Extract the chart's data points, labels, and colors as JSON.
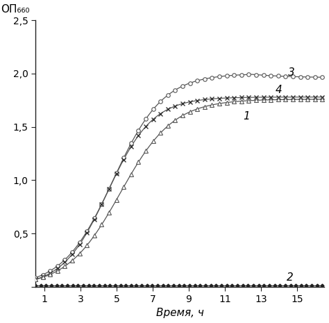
{
  "ylabel": "ОП₆₆₀",
  "xlabel": "Время, ч",
  "ylim": [
    0,
    2.5
  ],
  "xlim": [
    0.5,
    16.5
  ],
  "yticks": [
    0,
    0.5,
    1.0,
    1.5,
    2.0,
    2.5
  ],
  "xticks": [
    1,
    3,
    5,
    7,
    9,
    11,
    13,
    15
  ],
  "ytick_labels": [
    "",
    "0,5",
    "1,0",
    "1,5",
    "2,0",
    "2,5"
  ],
  "xtick_labels": [
    "1",
    "3",
    "5",
    "7",
    "9",
    "11",
    "13",
    "15"
  ],
  "curve1_label": "1",
  "curve2_label": "2",
  "curve3_label": "3",
  "curve4_label": "4",
  "background_color": "#ffffff",
  "line_color": "#555555",
  "curve2_color": "#222222",
  "label_fontsize": 11,
  "axis_fontsize": 10,
  "curve3_t0": 4.8,
  "curve3_k": 0.72,
  "curve3_ymax": 2.0,
  "curve3_plateau": 1.95,
  "curve4_t0": 4.5,
  "curve4_k": 0.8,
  "curve4_ymax": 1.78,
  "curve1_t0": 5.2,
  "curve1_k": 0.68,
  "curve1_ymax": 1.76,
  "n_markers": 40,
  "n_markers2": 55
}
